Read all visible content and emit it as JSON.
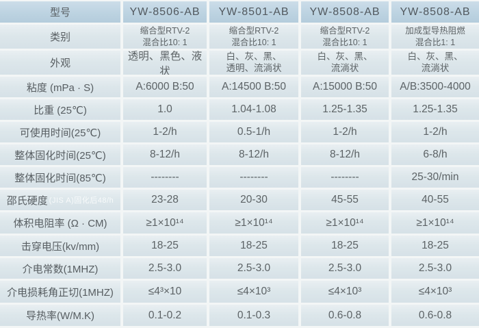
{
  "colors": {
    "header_bg": "#bed4e2",
    "row_bg": "#dde7eb",
    "gap": "#f3f6f6",
    "text": "#5c6265",
    "note_text": "#f2f6f8"
  },
  "table": {
    "header": {
      "label": "型号",
      "models": [
        "YW-8506-AB",
        "YW-8501-AB",
        "YW-8508-AB",
        "YW-8508-AB"
      ]
    },
    "rows": [
      {
        "label": "类别",
        "values": [
          "缩合型RTV-2\n混合比10: 1",
          "缩合型RTV-2\n混合比10: 1",
          "缩合型RTV-2\n混合比10: 1",
          "加成型导热阻燃\n混合比1: 1"
        ]
      },
      {
        "label": "外观",
        "values": [
          "透明、黑色、液状",
          "白、灰、黑、\n透明、流淌状",
          "白、灰、黑、\n流淌状",
          "白、灰、黑、\n流淌状"
        ]
      },
      {
        "label": "粘度 (mPa · S)",
        "values": [
          "A:6000  B:50",
          "A:14500  B:50",
          "A:15000  B:50",
          "A/B:3500-4000"
        ]
      },
      {
        "label": "比重 (25℃)",
        "values": [
          "1.0",
          "1.04-1.08",
          "1.25-1.35",
          "1.25-1.35"
        ]
      },
      {
        "label": "可使用时间(25℃)",
        "values": [
          "1-2/h",
          "0.5-1/h",
          "1-2/h",
          "1-2/h"
        ]
      },
      {
        "label": "整体固化时间(25℃)",
        "values": [
          "8-12/h",
          "8-12/h",
          "8-12/h",
          "6-8/h"
        ]
      },
      {
        "label": "整体固化时间(85℃)",
        "values": [
          "--------",
          "--------",
          "--------",
          "25-30/min"
        ]
      },
      {
        "label": "邵氏硬度",
        "note": "(JIS A)固化后48/h",
        "values": [
          "23-28",
          "20-30",
          "45-55",
          "40-55"
        ]
      },
      {
        "label": "体积电阻率 (Ω · CM)",
        "values": [
          "≥1×10¹⁴",
          "≥1×10¹⁴",
          "≥1×10¹⁴",
          "≥1×10¹⁴"
        ]
      },
      {
        "label": "击穿电压(kv/mm)",
        "values": [
          "18-25",
          "18-25",
          "18-25",
          "18-25"
        ]
      },
      {
        "label": "介电常数(1MHZ)",
        "values": [
          "2.5-3.0",
          "2.5-3.0",
          "2.5-3.0",
          "2.5-3.0"
        ]
      },
      {
        "label": "介电损耗角正切(1MHZ)",
        "values": [
          "≤4³×10",
          "≤4×10³",
          "≤4×10³",
          "≤4×10³"
        ]
      },
      {
        "label": "导热率(W/M.K)",
        "values": [
          "0.1-0.2",
          "0.1-0.3",
          "0.6-0.8",
          "0.6-0.8"
        ]
      }
    ]
  },
  "chart_data": {
    "type": "table",
    "columns": [
      "型号",
      "YW-8506-AB",
      "YW-8501-AB",
      "YW-8508-AB",
      "YW-8508-AB"
    ],
    "rows": [
      [
        "类别",
        "缩合型RTV-2 混合比10: 1",
        "缩合型RTV-2 混合比10: 1",
        "缩合型RTV-2 混合比10: 1",
        "加成型导热阻燃 混合比1: 1"
      ],
      [
        "外观",
        "透明、黑色、液状",
        "白、灰、黑、透明、流淌状",
        "白、灰、黑、流淌状",
        "白、灰、黑、流淌状"
      ],
      [
        "粘度 (mPa · S)",
        "A:6000 B:50",
        "A:14500 B:50",
        "A:15000 B:50",
        "A/B:3500-4000"
      ],
      [
        "比重 (25℃)",
        "1.0",
        "1.04-1.08",
        "1.25-1.35",
        "1.25-1.35"
      ],
      [
        "可使用时间(25℃)",
        "1-2/h",
        "0.5-1/h",
        "1-2/h",
        "1-2/h"
      ],
      [
        "整体固化时间(25℃)",
        "8-12/h",
        "8-12/h",
        "8-12/h",
        "6-8/h"
      ],
      [
        "整体固化时间(85℃)",
        "--------",
        "--------",
        "--------",
        "25-30/min"
      ],
      [
        "邵氏硬度 (JIS A)固化后48/h",
        "23-28",
        "20-30",
        "45-55",
        "40-55"
      ],
      [
        "体积电阻率 (Ω · CM)",
        "≥1×10¹⁴",
        "≥1×10¹⁴",
        "≥1×10¹⁴",
        "≥1×10¹⁴"
      ],
      [
        "击穿电压(kv/mm)",
        "18-25",
        "18-25",
        "18-25",
        "18-25"
      ],
      [
        "介电常数(1MHZ)",
        "2.5-3.0",
        "2.5-3.0",
        "2.5-3.0",
        "2.5-3.0"
      ],
      [
        "介电损耗角正切(1MHZ)",
        "≤4³×10",
        "≤4×10³",
        "≤4×10³",
        "≤4×10³"
      ],
      [
        "导热率(W/M.K)",
        "0.1-0.2",
        "0.1-0.3",
        "0.6-0.8",
        "0.6-0.8"
      ]
    ]
  }
}
